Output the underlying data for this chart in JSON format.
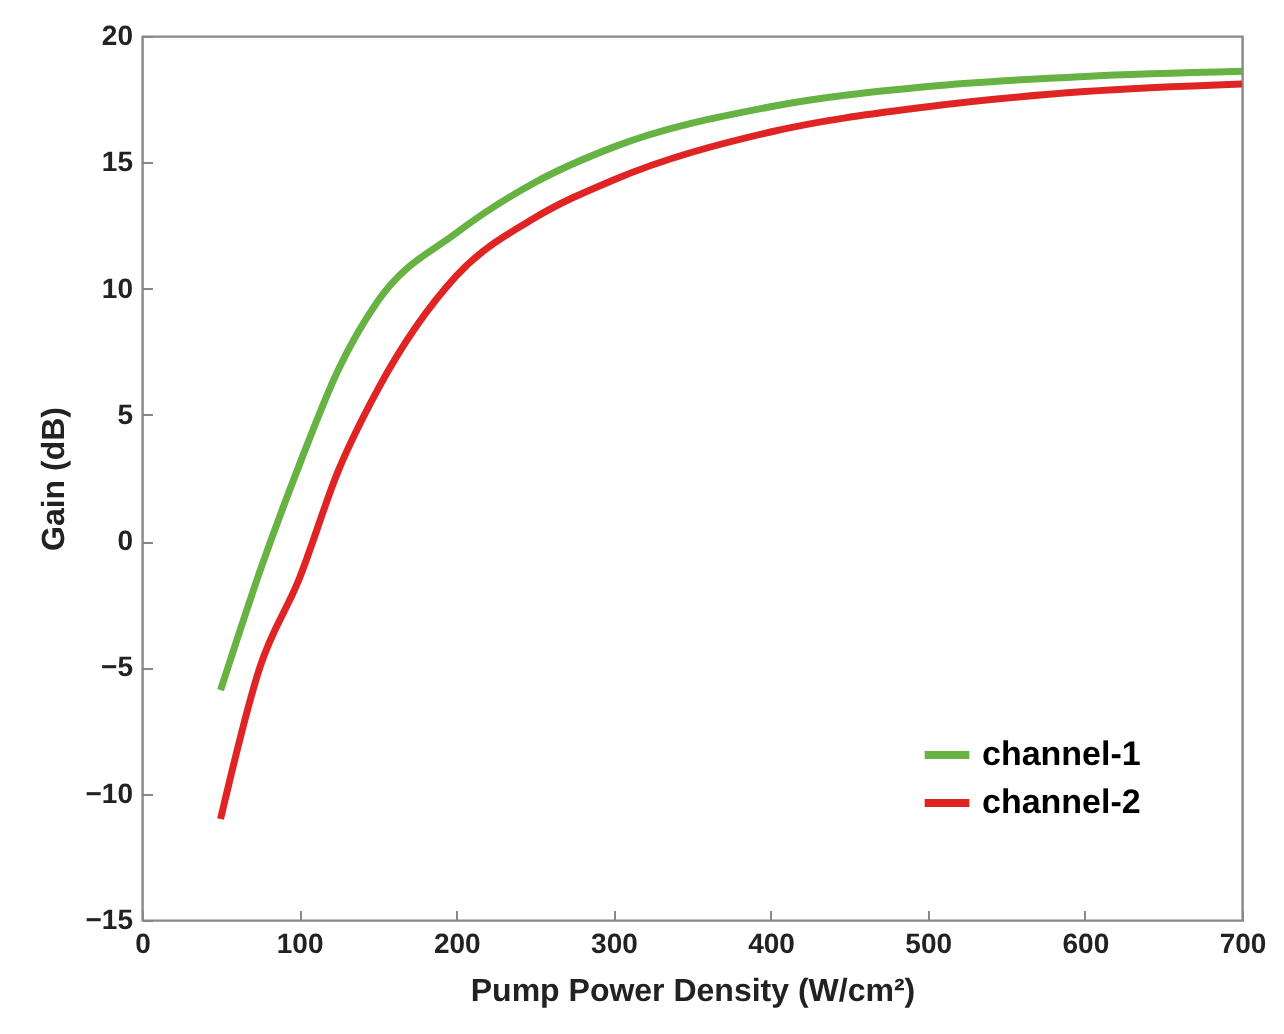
{
  "chart_data": {
    "type": "line",
    "xlabel": "Pump Power Density (W/cm²)",
    "ylabel": "Gain (dB)",
    "x": [
      50,
      75,
      100,
      125,
      150,
      200,
      250,
      300,
      400,
      500,
      600,
      700
    ],
    "series": [
      {
        "name": "channel-1",
        "color": "#66b243",
        "values": [
          -5.9,
          -1.2,
          3,
          6.8,
          9.5,
          12.2,
          14.2,
          15.6,
          17.2,
          18,
          18.4,
          18.6
        ]
      },
      {
        "name": "channel-2",
        "color": "#e02424",
        "values": [
          -11,
          -5,
          -1.5,
          2.8,
          6,
          10.5,
          12.8,
          14.3,
          16.2,
          17.2,
          17.8,
          18.1
        ]
      }
    ],
    "xlim": [
      0,
      700
    ],
    "xticks": [
      0,
      100,
      200,
      300,
      400,
      500,
      600,
      700
    ],
    "ylim": [
      -15,
      20
    ],
    "yticks": [
      -15,
      -10,
      -5,
      0,
      5,
      10,
      15,
      20
    ],
    "legend": "bottom right",
    "grid": false,
    "marker": "none",
    "line_style": "solid"
  }
}
